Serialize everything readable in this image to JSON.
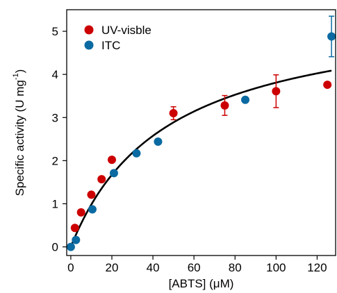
{
  "chart_data": {
    "type": "scatter",
    "title": "",
    "xlabel": "[ABTS] (μM)",
    "ylabel_main": "Specific activity (U mg",
    "ylabel_sup": "-1",
    "ylabel_end": ")",
    "xlim": [
      -2,
      129
    ],
    "ylim": [
      -0.2,
      5.5
    ],
    "xticks": [
      0,
      20,
      40,
      60,
      80,
      100,
      120
    ],
    "yticks": [
      0,
      1,
      2,
      3,
      4,
      5
    ],
    "grid": false,
    "legend_position": "top-left",
    "series": [
      {
        "name": "UV-visble",
        "color": "#cc0000",
        "points": [
          {
            "x": 2,
            "y": 0.44
          },
          {
            "x": 5,
            "y": 0.8
          },
          {
            "x": 10,
            "y": 1.21
          },
          {
            "x": 15,
            "y": 1.57
          },
          {
            "x": 20,
            "y": 2.02
          },
          {
            "x": 50,
            "y": 3.1,
            "err": 0.15
          },
          {
            "x": 75,
            "y": 3.28,
            "err": 0.23
          },
          {
            "x": 100,
            "y": 3.61,
            "err": 0.38
          },
          {
            "x": 125,
            "y": 3.76
          }
        ]
      },
      {
        "name": "ITC",
        "color": "#0a6aa1",
        "points": [
          {
            "x": 0,
            "y": 0.0
          },
          {
            "x": 2.5,
            "y": 0.16
          },
          {
            "x": 10.5,
            "y": 0.87
          },
          {
            "x": 21,
            "y": 1.71
          },
          {
            "x": 32,
            "y": 2.17,
            "err": 0.06
          },
          {
            "x": 42.5,
            "y": 2.44
          },
          {
            "x": 85,
            "y": 3.41,
            "err": 0.06
          },
          {
            "x": 127,
            "y": 4.88,
            "err": 0.47
          }
        ]
      }
    ],
    "fit": {
      "model": "michaelis-menten",
      "vmax": 5.6,
      "km": 47,
      "x_range": [
        0,
        127
      ],
      "color": "#000000"
    }
  }
}
